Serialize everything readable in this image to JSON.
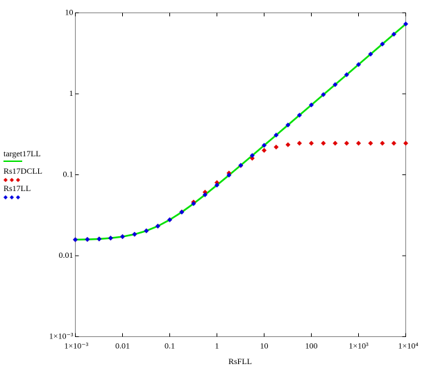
{
  "chart_data": {
    "type": "scatter",
    "x_label": "RsFLL",
    "log_x": true,
    "log_y": true,
    "xlim": [
      0.001,
      10000
    ],
    "ylim": [
      0.001,
      10
    ],
    "xticks": [
      {
        "value": 0.001,
        "label": "1×10⁻³"
      },
      0.01,
      0.1,
      1,
      10,
      100,
      {
        "value": 1000,
        "label": "1×10³"
      },
      {
        "value": 10000,
        "label": "1×10⁴"
      }
    ],
    "yticks": [
      {
        "value": 0.001,
        "label": "1×10⁻³"
      },
      0.01,
      0.1,
      1,
      10
    ],
    "x": [
      0.001,
      0.0018,
      0.0032,
      0.0056,
      0.01,
      0.018,
      0.032,
      0.056,
      0.1,
      0.18,
      0.32,
      0.56,
      1,
      1.8,
      3.2,
      5.6,
      10,
      18,
      32,
      56,
      100,
      180,
      320,
      560,
      1000,
      1800,
      3200,
      5600,
      10000
    ],
    "series": [
      {
        "name": "target17LL",
        "style": "line",
        "color": "#00e000",
        "values": [
          0.0158,
          0.0159,
          0.0161,
          0.0165,
          0.0172,
          0.0184,
          0.0203,
          0.0232,
          0.0278,
          0.0346,
          0.044,
          0.0567,
          0.0745,
          0.0989,
          0.131,
          0.173,
          0.231,
          0.309,
          0.412,
          0.545,
          0.728,
          0.977,
          1.3,
          1.72,
          2.3,
          3.09,
          4.12,
          5.45,
          7.28
        ]
      },
      {
        "name": "Rs17DCLL",
        "style": "diamond",
        "color": "#e00000",
        "values": [
          0.0158,
          0.0159,
          0.0161,
          0.0165,
          0.0172,
          0.0184,
          0.0203,
          0.0232,
          0.0278,
          0.0348,
          0.046,
          0.061,
          0.08,
          0.105,
          0.13,
          0.16,
          0.2,
          0.22,
          0.235,
          0.245,
          0.245,
          0.245,
          0.245,
          0.245,
          0.245,
          0.245,
          0.245,
          0.245,
          0.245
        ]
      },
      {
        "name": "Rs17LL",
        "style": "diamond",
        "color": "#0000e0",
        "values": [
          0.0158,
          0.0159,
          0.0161,
          0.0165,
          0.0172,
          0.0184,
          0.0203,
          0.0232,
          0.0278,
          0.0346,
          0.044,
          0.0567,
          0.0745,
          0.0989,
          0.131,
          0.173,
          0.231,
          0.309,
          0.412,
          0.545,
          0.728,
          0.977,
          1.3,
          1.72,
          2.3,
          3.09,
          4.12,
          5.45,
          7.28
        ]
      }
    ]
  }
}
